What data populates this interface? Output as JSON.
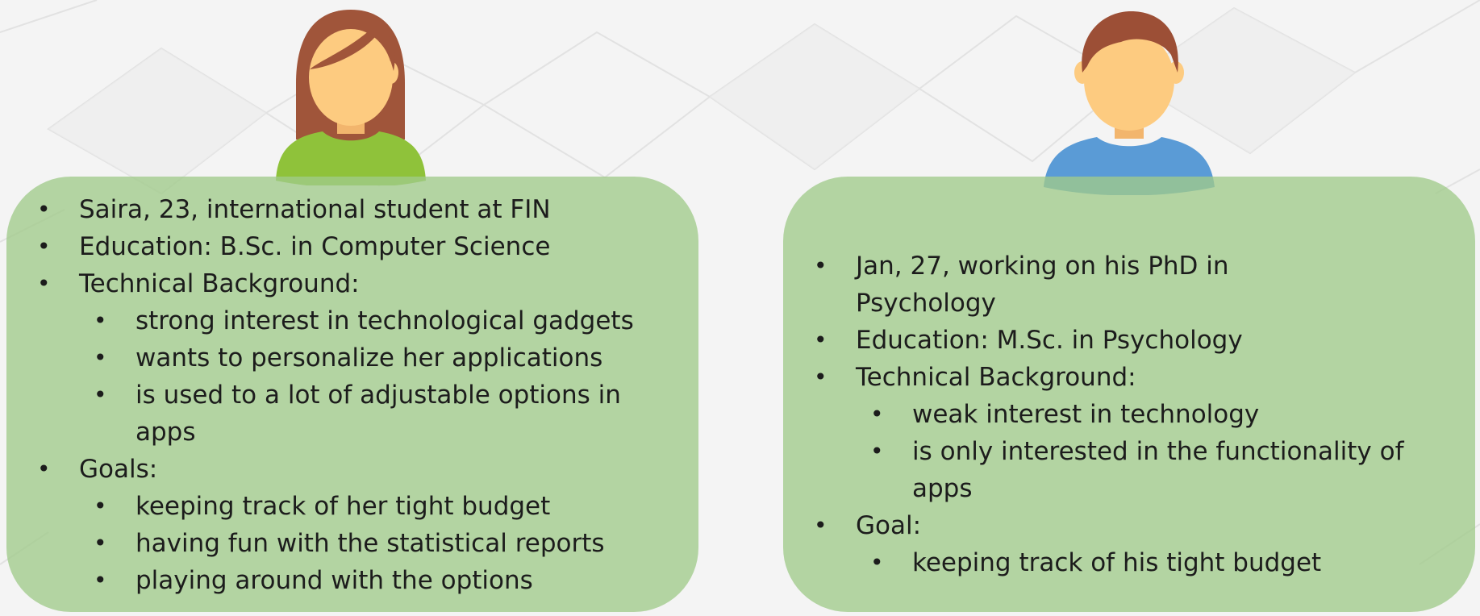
{
  "colors": {
    "card_fill": "#a0cb8a",
    "female_hair": "#a0553a",
    "male_hair": "#9c4f36",
    "skin": "#fdcb80",
    "female_shirt": "#8fc23a",
    "male_shirt": "#5a9bd6"
  },
  "icons": {
    "female": "female-user-avatar-icon",
    "male": "male-user-avatar-icon"
  },
  "persona_left": {
    "items": [
      {
        "text": "Saira, 23, international student at FIN",
        "sub": []
      },
      {
        "text": "Education: B.Sc. in Computer Science",
        "sub": []
      },
      {
        "text": "Technical Background:",
        "sub": [
          "strong interest in technological gadgets",
          "wants to personalize her applications",
          "is used to a lot of adjustable options in apps"
        ]
      },
      {
        "text": "Goals:",
        "sub": [
          "keeping track of her tight budget",
          "having fun with the statistical reports",
          "playing around with the options"
        ]
      }
    ]
  },
  "persona_right": {
    "items": [
      {
        "text": "Jan, 27, working on his PhD in Psychology",
        "sub": []
      },
      {
        "text": "Education: M.Sc. in Psychology",
        "sub": []
      },
      {
        "text": "Technical Background:",
        "sub": [
          "weak interest in technology",
          "is only interested in the functionality of apps"
        ]
      },
      {
        "text": "Goal:",
        "sub": [
          "keeping track of his tight budget"
        ]
      }
    ]
  }
}
